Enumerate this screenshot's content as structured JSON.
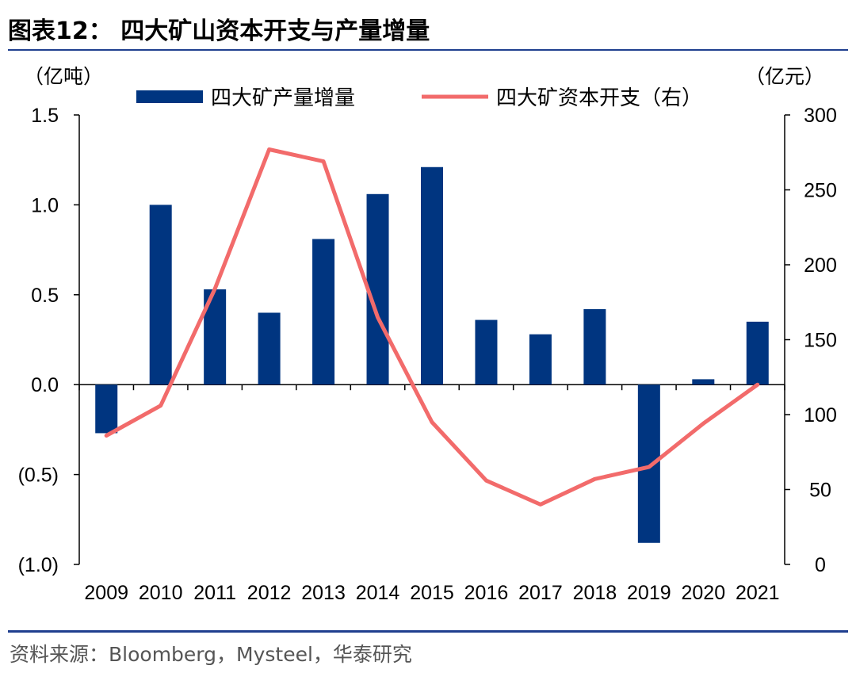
{
  "title": "图表12：  四大矿山资本开支与产量增量",
  "source": "资料来源：Bloomberg，Mysteel，华泰研究",
  "chart_data": {
    "type": "bar",
    "categories": [
      "2009",
      "2010",
      "2011",
      "2012",
      "2013",
      "2014",
      "2015",
      "2016",
      "2017",
      "2018",
      "2019",
      "2020",
      "2021"
    ],
    "y_left_unit": "（亿吨）",
    "y_right_unit": "（亿元）",
    "y_left_lim": [
      -1.0,
      1.5
    ],
    "y_left_ticks": [
      -1.0,
      -0.5,
      0.0,
      0.5,
      1.0,
      1.5
    ],
    "y_left_tick_labels": [
      "(1.0)",
      "(0.5)",
      "0.0",
      "0.5",
      "1.0",
      "1.5"
    ],
    "y_right_lim": [
      0,
      300
    ],
    "y_right_ticks": [
      0,
      50,
      100,
      150,
      200,
      250,
      300
    ],
    "y_right_tick_labels": [
      "0",
      "50",
      "100",
      "150",
      "200",
      "250",
      "300"
    ],
    "legend_position": "top",
    "series": [
      {
        "name": "四大矿产量增量",
        "type": "bar",
        "axis": "left",
        "color": "#003580",
        "values": [
          -0.27,
          1.0,
          0.53,
          0.4,
          0.81,
          1.06,
          1.21,
          0.36,
          0.28,
          0.42,
          -0.88,
          0.03,
          0.35
        ]
      },
      {
        "name": "四大矿资本开支（右）",
        "type": "line",
        "axis": "right",
        "color": "#f26b6b",
        "values": [
          86,
          106,
          184,
          277,
          269,
          165,
          95,
          56,
          40,
          57,
          65,
          94,
          120
        ]
      }
    ]
  }
}
